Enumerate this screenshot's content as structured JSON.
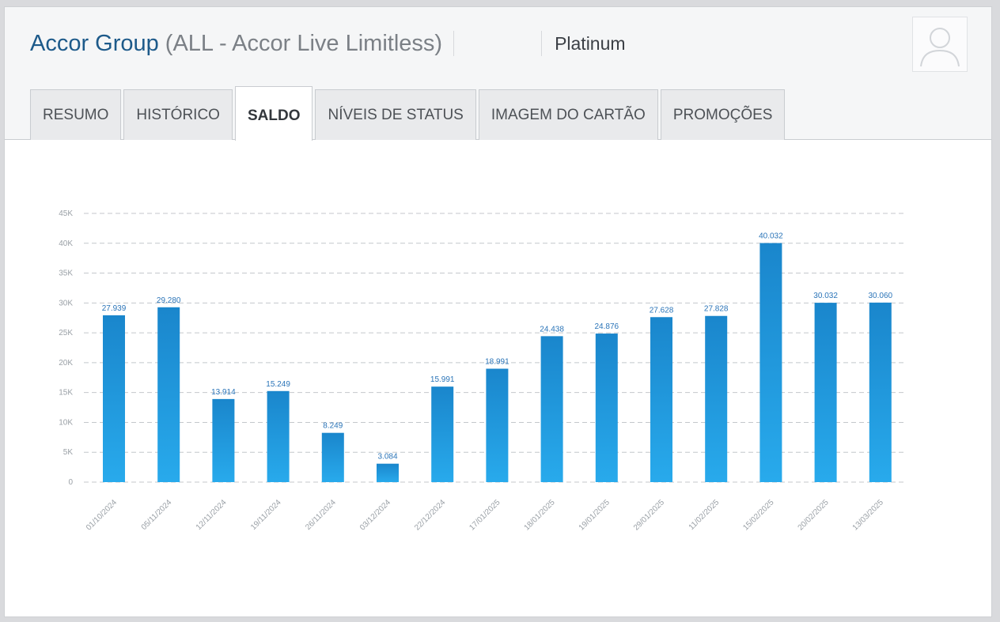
{
  "header": {
    "brand": "Accor Group",
    "program": "(ALL - Accor Live Limitless)",
    "tier": "Platinum"
  },
  "tabs": [
    {
      "label": "RESUMO",
      "active": false
    },
    {
      "label": "HISTÓRICO",
      "active": false
    },
    {
      "label": "SALDO",
      "active": true
    },
    {
      "label": "NÍVEIS DE STATUS",
      "active": false
    },
    {
      "label": "IMAGEM DO CARTÃO",
      "active": false
    },
    {
      "label": "PROMOÇÕES",
      "active": false
    }
  ],
  "chart_data": {
    "type": "bar",
    "categories": [
      "01/10/2024",
      "05/11/2024",
      "12/11/2024",
      "19/11/2024",
      "26/11/2024",
      "03/12/2024",
      "22/12/2024",
      "17/01/2025",
      "18/01/2025",
      "19/01/2025",
      "29/01/2025",
      "11/02/2025",
      "15/02/2025",
      "20/02/2025",
      "13/03/2025"
    ],
    "values": [
      27939,
      29280,
      13914,
      15249,
      8249,
      3084,
      15991,
      18991,
      24438,
      24876,
      27628,
      27828,
      40032,
      30032,
      30060
    ],
    "data_labels": [
      "27.939",
      "29.280",
      "13.914",
      "15.249",
      "8.249",
      "3.084",
      "15.991",
      "18.991",
      "24.438",
      "24.876",
      "27.628",
      "27.828",
      "40.032",
      "30.032",
      "30.060"
    ],
    "y_ticks": [
      0,
      5000,
      10000,
      15000,
      20000,
      25000,
      30000,
      35000,
      40000,
      45000
    ],
    "y_tick_labels": [
      "0",
      "5K",
      "10K",
      "15K",
      "20K",
      "25K",
      "30K",
      "35K",
      "40K",
      "45K"
    ],
    "ylim": [
      0,
      45000
    ],
    "grid": true,
    "colors": {
      "bar_top": "#1a86cc",
      "bar_bottom": "#28aaec",
      "label": "#2a74b8",
      "axis_text": "#9aa0a6",
      "grid": "#c4c7cb"
    }
  }
}
